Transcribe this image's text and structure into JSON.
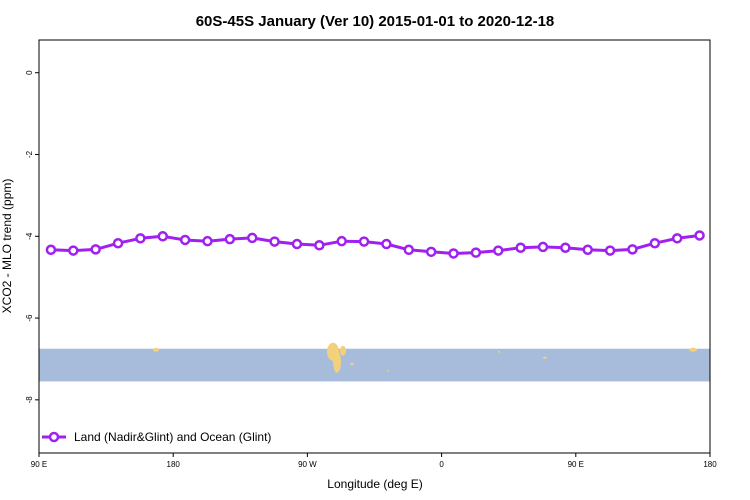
{
  "chart_data": {
    "type": "line",
    "title": "60S-45S January (Ver 10)   2015-01-01 to 2020-12-18",
    "xlabel": "Longitude (deg E)",
    "ylabel": "XCO2 - MLO trend (ppm)",
    "xlim": [
      90,
      540
    ],
    "ylim": [
      -9.3,
      0.8
    ],
    "x_ticks": [
      {
        "value": 90,
        "label": "90 E"
      },
      {
        "value": 180,
        "label": "180"
      },
      {
        "value": 270,
        "label": "90 W"
      },
      {
        "value": 360,
        "label": "0"
      },
      {
        "value": 450,
        "label": "90 E"
      },
      {
        "value": 540,
        "label": "180"
      }
    ],
    "y_ticks": [
      0,
      -2,
      -4,
      -6,
      -8
    ],
    "grid": false,
    "legend_position": "bottom-left",
    "map_band": {
      "lat_range": [
        "60S",
        "45S"
      ],
      "y_range": [
        -7.55,
        -6.75
      ]
    },
    "series": [
      {
        "name": "Land (Nadir&Glint) and Ocean (Glint)",
        "color": "#a020f0",
        "x": [
          98,
          113,
          128,
          143,
          158,
          173,
          188,
          203,
          218,
          233,
          248,
          263,
          278,
          293,
          308,
          323,
          338,
          353,
          368,
          383,
          398,
          413,
          428,
          443,
          458,
          473,
          488,
          503,
          518,
          533
        ],
        "y": [
          -4.33,
          -4.35,
          -4.32,
          -4.17,
          -4.05,
          -4.0,
          -4.09,
          -4.12,
          -4.07,
          -4.04,
          -4.13,
          -4.19,
          -4.22,
          -4.12,
          -4.13,
          -4.19,
          -4.33,
          -4.38,
          -4.42,
          -4.4,
          -4.35,
          -4.28,
          -4.26,
          -4.28,
          -4.33,
          -4.35,
          -4.32,
          -4.17,
          -4.05,
          -3.98
        ]
      }
    ]
  }
}
